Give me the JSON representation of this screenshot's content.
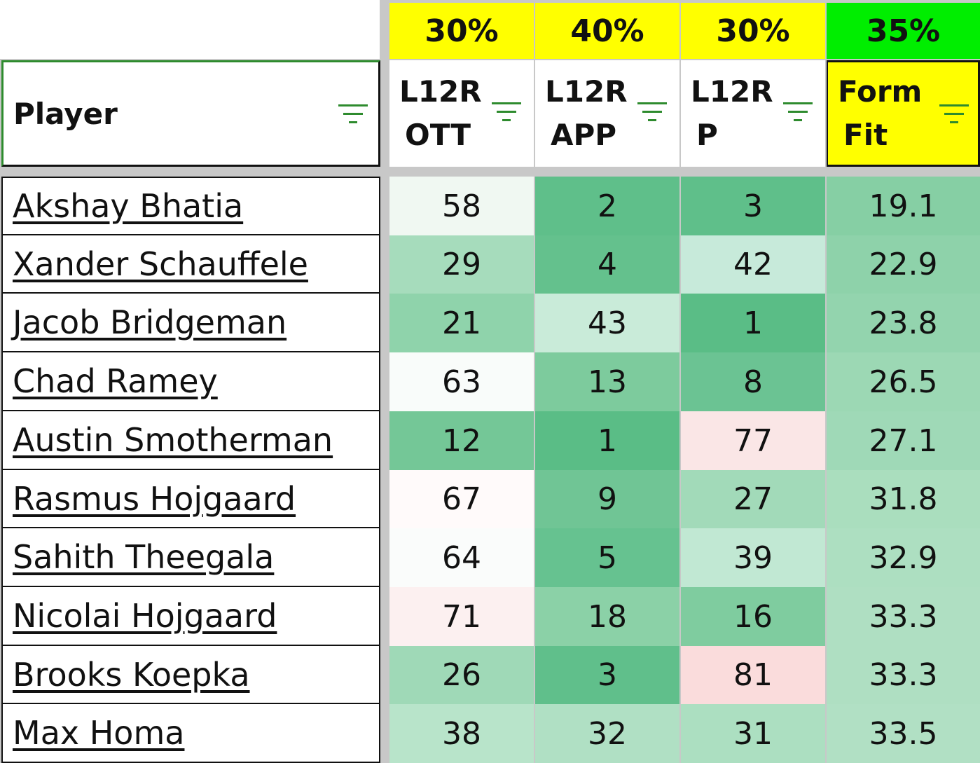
{
  "weights": [
    {
      "label": "30%",
      "color": "#ffff00"
    },
    {
      "label": "40%",
      "color": "#ffff00"
    },
    {
      "label": "30%",
      "color": "#ffff00"
    },
    {
      "label": "35%",
      "color": "#00ee00"
    }
  ],
  "headers": {
    "player": "Player",
    "columns": [
      {
        "line1": "L12R",
        "line2": "OTT"
      },
      {
        "line1": "L12R",
        "line2": "APP"
      },
      {
        "line1": "L12R",
        "line2": "P"
      },
      {
        "line1": "Form",
        "line2": "Fit"
      }
    ]
  },
  "rows": [
    {
      "player": "Akshay Bhatia",
      "ott": "58",
      "app": "2",
      "p": "3",
      "form_fit": "19.1",
      "colors": [
        "#f0f8f2",
        "#5fbf8a",
        "#5fbf8a",
        "#86cfa4"
      ]
    },
    {
      "player": "Xander Schauffele",
      "ott": "29",
      "app": "4",
      "p": "42",
      "form_fit": "22.9",
      "colors": [
        "#a6dcbc",
        "#64c18d",
        "#c7eada",
        "#8ed2aa"
      ]
    },
    {
      "player": "Jacob Bridgeman",
      "ott": "21",
      "app": "43",
      "p": "1",
      "form_fit": "23.8",
      "colors": [
        "#8fd3ab",
        "#c9ebd9",
        "#5abd86",
        "#93d4ae"
      ]
    },
    {
      "player": "Chad Ramey",
      "ott": "63",
      "app": "13",
      "p": "8",
      "form_fit": "26.5",
      "colors": [
        "#f9fcfa",
        "#7dcb9d",
        "#6bc393",
        "#9cd8b4"
      ]
    },
    {
      "player": "Austin Smotherman",
      "ott": "12",
      "app": "1",
      "p": "77",
      "form_fit": "27.1",
      "colors": [
        "#74c797",
        "#5abd86",
        "#fae6e6",
        "#9fd9b7"
      ]
    },
    {
      "player": "Rasmus Hojgaard",
      "ott": "67",
      "app": "9",
      "p": "27",
      "form_fit": "31.8",
      "colors": [
        "#fffafa",
        "#70c595",
        "#a2dab9",
        "#aadebe"
      ]
    },
    {
      "player": "Sahith Theegala",
      "ott": "64",
      "app": "5",
      "p": "39",
      "form_fit": "32.9",
      "colors": [
        "#fafcfb",
        "#66c290",
        "#c1e8d3",
        "#addfc1"
      ]
    },
    {
      "player": "Nicolai Hojgaard",
      "ott": "71",
      "app": "18",
      "p": "16",
      "form_fit": "33.3",
      "colors": [
        "#fcf0f0",
        "#8bd1a7",
        "#7fcc9f",
        "#afdfc2"
      ]
    },
    {
      "player": "Brooks Koepka",
      "ott": "26",
      "app": "3",
      "p": "81",
      "form_fit": "33.3",
      "colors": [
        "#9fd9b7",
        "#60bf8b",
        "#fadcdc",
        "#afdfc2"
      ]
    },
    {
      "player": "Max Homa",
      "ott": "38",
      "app": "32",
      "p": "31",
      "form_fit": "33.5",
      "colors": [
        "#b8e4ca",
        "#b0e0c4",
        "#acdfc1",
        "#b1e0c4"
      ]
    }
  ]
}
